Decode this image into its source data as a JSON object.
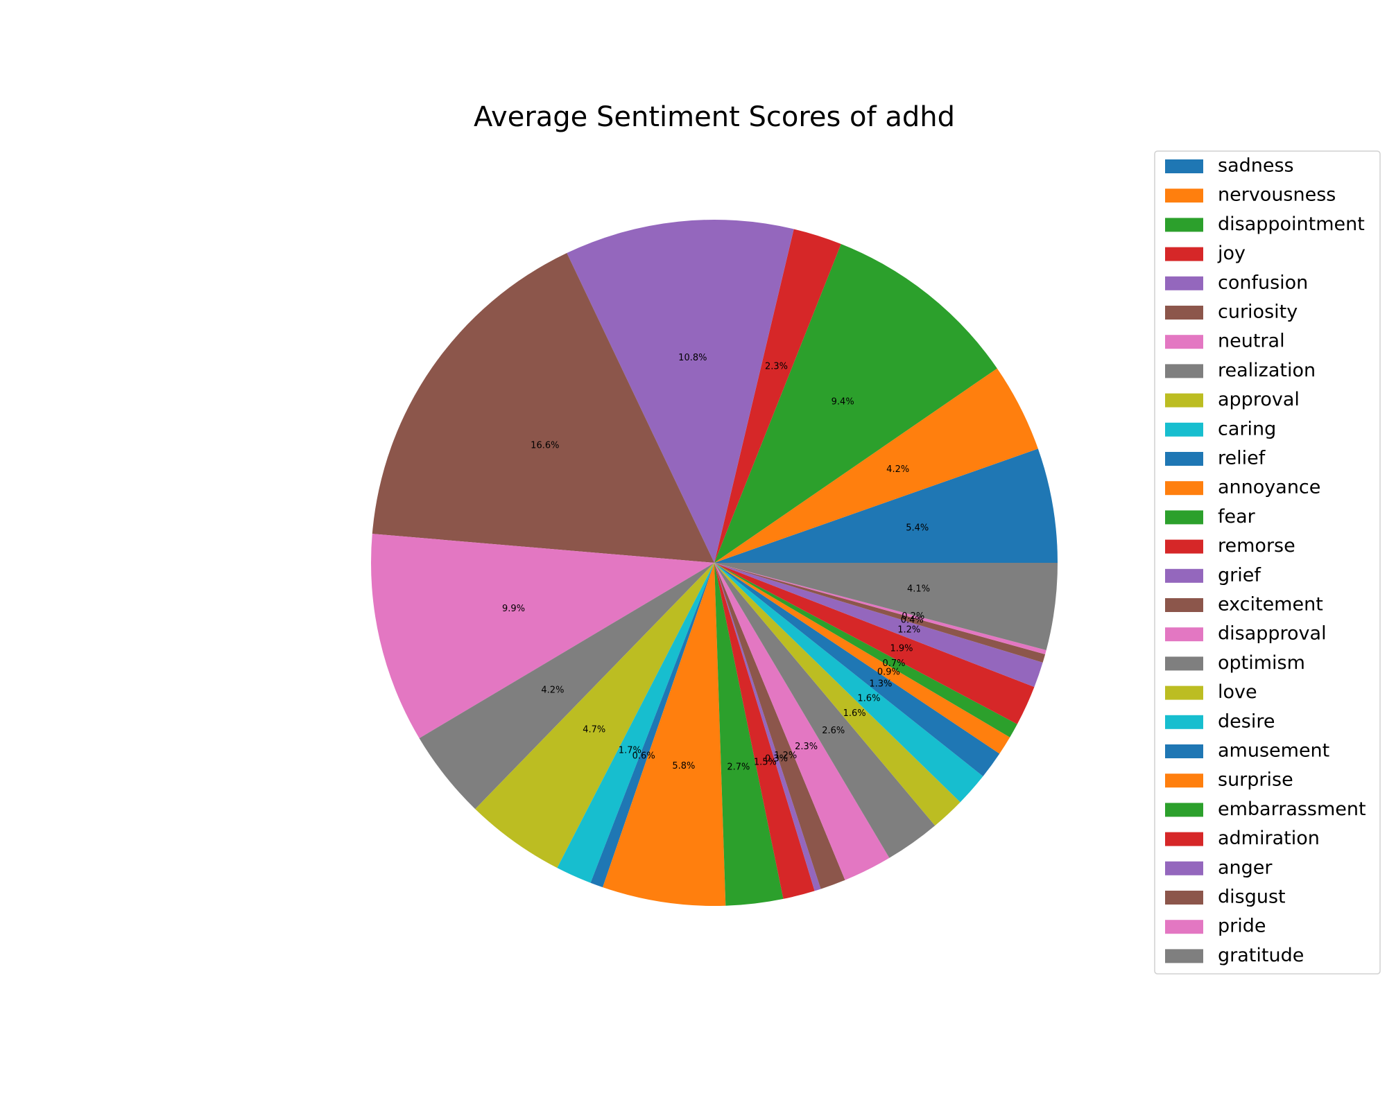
{
  "chart_data": {
    "type": "pie",
    "title": "Average Sentiment Scores of adhd",
    "legend_position": "right",
    "slices": [
      {
        "label": "sadness",
        "value": 5.4,
        "pct_label": "5.4%",
        "color": "#1f77b4"
      },
      {
        "label": "nervousness",
        "value": 4.2,
        "pct_label": "4.2%",
        "color": "#ff7f0e"
      },
      {
        "label": "disappointment",
        "value": 9.4,
        "pct_label": "9.4%",
        "color": "#2ca02c"
      },
      {
        "label": "joy",
        "value": 2.3,
        "pct_label": "2.3%",
        "color": "#d62728"
      },
      {
        "label": "confusion",
        "value": 10.8,
        "pct_label": "10.8%",
        "color": "#9467bd"
      },
      {
        "label": "curiosity",
        "value": 16.6,
        "pct_label": "16.6%",
        "color": "#8c564b"
      },
      {
        "label": "neutral",
        "value": 9.9,
        "pct_label": "9.9%",
        "color": "#e377c2"
      },
      {
        "label": "realization",
        "value": 4.2,
        "pct_label": "4.2%",
        "color": "#7f7f7f"
      },
      {
        "label": "approval",
        "value": 4.7,
        "pct_label": "4.7%",
        "color": "#bcbd22"
      },
      {
        "label": "caring",
        "value": 1.7,
        "pct_label": "1.7%",
        "color": "#17becf"
      },
      {
        "label": "relief",
        "value": 0.6,
        "pct_label": "0.6%",
        "color": "#1f77b4"
      },
      {
        "label": "annoyance",
        "value": 5.8,
        "pct_label": "5.8%",
        "color": "#ff7f0e"
      },
      {
        "label": "fear",
        "value": 2.7,
        "pct_label": "2.7%",
        "color": "#2ca02c"
      },
      {
        "label": "remorse",
        "value": 1.5,
        "pct_label": "1.5%",
        "color": "#d62728"
      },
      {
        "label": "grief",
        "value": 0.3,
        "pct_label": "0.3%",
        "color": "#9467bd"
      },
      {
        "label": "excitement",
        "value": 1.2,
        "pct_label": "1.2%",
        "color": "#8c564b"
      },
      {
        "label": "disapproval",
        "value": 2.3,
        "pct_label": "2.3%",
        "color": "#e377c2"
      },
      {
        "label": "optimism",
        "value": 2.6,
        "pct_label": "2.6%",
        "color": "#7f7f7f"
      },
      {
        "label": "love",
        "value": 1.6,
        "pct_label": "1.6%",
        "color": "#bcbd22"
      },
      {
        "label": "desire",
        "value": 1.6,
        "pct_label": "1.6%",
        "color": "#17becf"
      },
      {
        "label": "amusement",
        "value": 1.3,
        "pct_label": "1.3%",
        "color": "#1f77b4"
      },
      {
        "label": "surprise",
        "value": 0.9,
        "pct_label": "0.9%",
        "color": "#ff7f0e"
      },
      {
        "label": "embarrassment",
        "value": 0.7,
        "pct_label": "0.7%",
        "color": "#2ca02c"
      },
      {
        "label": "admiration",
        "value": 1.9,
        "pct_label": "1.9%",
        "color": "#d62728"
      },
      {
        "label": "anger",
        "value": 1.2,
        "pct_label": "1.2%",
        "color": "#9467bd"
      },
      {
        "label": "disgust",
        "value": 0.4,
        "pct_label": "0.4%",
        "color": "#8c564b"
      },
      {
        "label": "pride",
        "value": 0.2,
        "pct_label": "0.2%",
        "color": "#e377c2"
      },
      {
        "label": "gratitude",
        "value": 4.1,
        "pct_label": "4.1%",
        "color": "#7f7f7f"
      }
    ]
  }
}
